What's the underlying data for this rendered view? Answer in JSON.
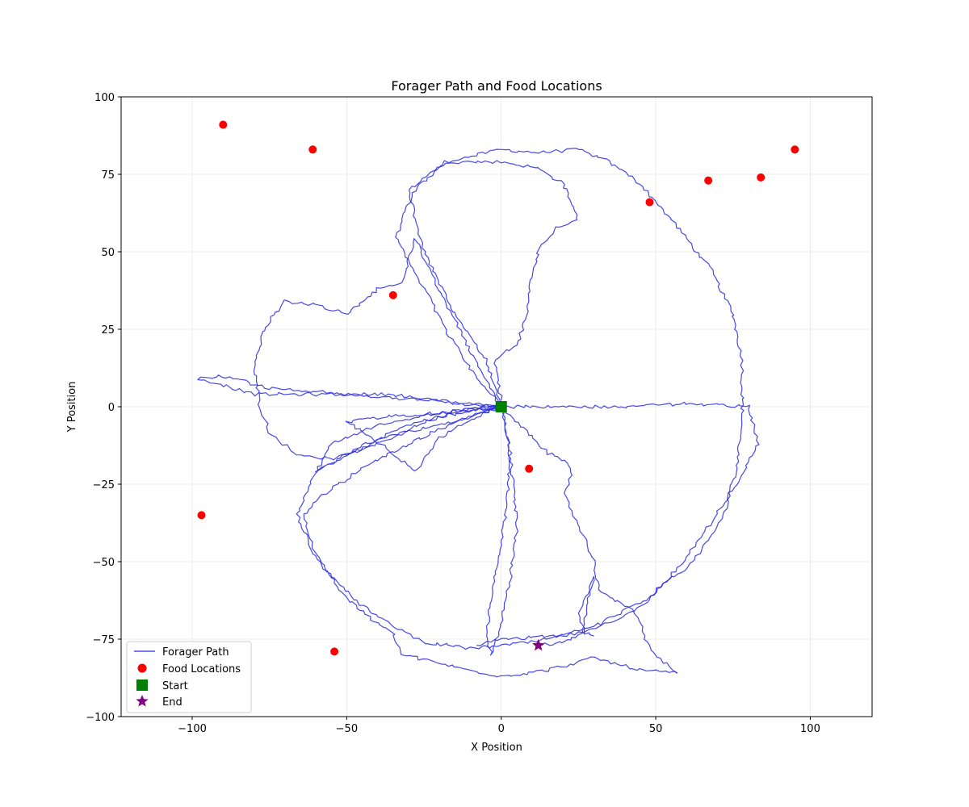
{
  "chart_data": {
    "type": "scatter",
    "title": "Forager Path and Food Locations",
    "xlabel": "X Position",
    "ylabel": "Y Position",
    "xlim": [
      -123,
      120
    ],
    "ylim": [
      -100,
      100
    ],
    "x_ticks": [
      -100,
      -50,
      0,
      50,
      100
    ],
    "y_ticks": [
      -100,
      -75,
      -50,
      -25,
      0,
      25,
      50,
      75,
      100
    ],
    "x_tick_labels": [
      "−100",
      "−50",
      "0",
      "50",
      "100"
    ],
    "y_tick_labels": [
      "−100",
      "−75",
      "−50",
      "−25",
      "0",
      "25",
      "50",
      "75",
      "100"
    ],
    "grid": true,
    "legend_position": "lower-left",
    "colors": {
      "path": "#2727e6",
      "food": "#ff0000",
      "start": "#008000",
      "end": "#800080"
    },
    "series": [
      {
        "name": "Forager Path",
        "type": "line",
        "loops": [
          [
            [
              0,
              0
            ],
            [
              -5,
              15
            ],
            [
              -15,
              30
            ],
            [
              -25,
              50
            ],
            [
              -30,
              70
            ],
            [
              -18,
              79
            ],
            [
              0,
              83
            ],
            [
              12,
              82
            ],
            [
              25,
              83
            ],
            [
              35,
              79
            ],
            [
              45,
              72
            ],
            [
              57,
              58
            ],
            [
              68,
              44
            ],
            [
              75,
              30
            ],
            [
              78,
              15
            ],
            [
              78,
              -5
            ],
            [
              76,
              -20
            ],
            [
              72,
              -35
            ],
            [
              62,
              -50
            ],
            [
              47,
              -62
            ],
            [
              32,
              -70
            ],
            [
              18,
              -74
            ],
            [
              0,
              -75
            ],
            [
              -8,
              -77
            ]
          ],
          [
            [
              0,
              0
            ],
            [
              -10,
              12
            ],
            [
              -18,
              25
            ],
            [
              -26,
              40
            ],
            [
              -34,
              55
            ],
            [
              -28,
              70
            ],
            [
              -18,
              79
            ],
            [
              0,
              79
            ],
            [
              12,
              77
            ],
            [
              20,
              72
            ],
            [
              25,
              60
            ],
            [
              18,
              58
            ],
            [
              12,
              50
            ],
            [
              9,
              40
            ],
            [
              8,
              28
            ],
            [
              5,
              20
            ],
            [
              -2,
              15
            ],
            [
              0,
              2
            ]
          ],
          [
            [
              0,
              0
            ],
            [
              -8,
              14
            ],
            [
              -15,
              28
            ],
            [
              -22,
              42
            ],
            [
              -28,
              54
            ],
            [
              -30,
              48
            ],
            [
              -32,
              40
            ],
            [
              -40,
              38
            ],
            [
              -50,
              30
            ],
            [
              -60,
              33
            ],
            [
              -70,
              34
            ],
            [
              -77,
              25
            ],
            [
              -80,
              12
            ],
            [
              -78,
              0
            ],
            [
              -75,
              -8
            ],
            [
              -67,
              -15
            ],
            [
              -55,
              -17
            ],
            [
              -40,
              -12
            ],
            [
              -25,
              -5
            ],
            [
              -10,
              0
            ],
            [
              0,
              0
            ]
          ],
          [
            [
              0,
              0
            ],
            [
              -20,
              2
            ],
            [
              -40,
              3
            ],
            [
              -60,
              5
            ],
            [
              -75,
              6
            ],
            [
              -90,
              10
            ],
            [
              -98,
              9
            ],
            [
              -90,
              7
            ],
            [
              -80,
              4
            ],
            [
              -55,
              4
            ],
            [
              -35,
              4
            ],
            [
              -15,
              1
            ],
            [
              0,
              0
            ]
          ],
          [
            [
              0,
              0
            ],
            [
              -20,
              -2
            ],
            [
              -40,
              -6
            ],
            [
              -55,
              -12
            ],
            [
              -62,
              -25
            ],
            [
              -66,
              -35
            ],
            [
              -61,
              -47
            ],
            [
              -55,
              -55
            ],
            [
              -50,
              -62
            ],
            [
              -40,
              -70
            ],
            [
              -35,
              -73
            ],
            [
              -32,
              -80
            ],
            [
              -15,
              -84
            ],
            [
              0,
              -87
            ],
            [
              15,
              -85
            ],
            [
              30,
              -81
            ],
            [
              45,
              -85
            ],
            [
              57,
              -86
            ]
          ],
          [
            [
              0,
              0
            ],
            [
              -15,
              -5
            ],
            [
              -30,
              -12
            ],
            [
              -45,
              -20
            ],
            [
              -57,
              -28
            ],
            [
              -64,
              -35
            ],
            [
              -60,
              -48
            ],
            [
              -50,
              -60
            ],
            [
              -40,
              -68
            ],
            [
              -25,
              -76
            ],
            [
              -10,
              -78
            ],
            [
              0,
              -77
            ],
            [
              10,
              -76
            ],
            [
              20,
              -74
            ],
            [
              30,
              -72
            ],
            [
              38,
              -68
            ],
            [
              46,
              -64
            ],
            [
              57,
              -52
            ],
            [
              66,
              -40
            ],
            [
              73,
              -30
            ],
            [
              79,
              -20
            ],
            [
              83,
              -12
            ],
            [
              80,
              0
            ],
            [
              60,
              1
            ],
            [
              40,
              0
            ],
            [
              20,
              0
            ],
            [
              0,
              0
            ]
          ],
          [
            [
              0,
              0
            ],
            [
              -20,
              -3
            ],
            [
              -35,
              -8
            ],
            [
              -50,
              -16
            ],
            [
              -60,
              -21
            ],
            [
              -45,
              -12
            ],
            [
              -30,
              -8
            ],
            [
              -15,
              -5
            ],
            [
              0,
              0
            ]
          ],
          [
            [
              0,
              0
            ],
            [
              -10,
              -4
            ],
            [
              -20,
              -10
            ],
            [
              -28,
              -21
            ],
            [
              -35,
              -15
            ],
            [
              -45,
              -8
            ],
            [
              -50,
              -5
            ],
            [
              -35,
              -3
            ],
            [
              -20,
              -2
            ],
            [
              0,
              0
            ]
          ],
          [
            [
              0,
              0
            ],
            [
              3,
              -15
            ],
            [
              2,
              -30
            ],
            [
              0,
              -45
            ],
            [
              -3,
              -60
            ],
            [
              -5,
              -75
            ],
            [
              -3,
              -80
            ],
            [
              0,
              -70
            ],
            [
              3,
              -55
            ],
            [
              5,
              -40
            ],
            [
              4,
              -25
            ],
            [
              2,
              -10
            ],
            [
              0,
              0
            ]
          ],
          [
            [
              0,
              0
            ],
            [
              8,
              -8
            ],
            [
              15,
              -15
            ],
            [
              22,
              -18
            ],
            [
              23,
              -21
            ],
            [
              20,
              -28
            ],
            [
              25,
              -38
            ],
            [
              30,
              -50
            ],
            [
              32,
              -60
            ],
            [
              38,
              -63
            ],
            [
              42,
              -65
            ],
            [
              45,
              -70
            ],
            [
              48,
              -78
            ],
            [
              54,
              -84
            ],
            [
              57,
              -86
            ]
          ],
          [
            [
              12,
              -77
            ],
            [
              20,
              -76
            ],
            [
              26,
              -73
            ],
            [
              27,
              -68
            ],
            [
              28,
              -62
            ],
            [
              30,
              -55
            ],
            [
              29,
              -58
            ],
            [
              27,
              -63
            ],
            [
              25,
              -68
            ],
            [
              27,
              -73
            ],
            [
              30,
              -74
            ]
          ]
        ]
      },
      {
        "name": "Food Locations",
        "type": "scatter",
        "points": [
          [
            -90,
            91
          ],
          [
            -61,
            83
          ],
          [
            48,
            66
          ],
          [
            67,
            73
          ],
          [
            84,
            74
          ],
          [
            95,
            83
          ],
          [
            -35,
            36
          ],
          [
            9,
            -20
          ],
          [
            -97,
            -35
          ],
          [
            -54,
            -79
          ]
        ]
      },
      {
        "name": "Start",
        "type": "marker",
        "points": [
          [
            0,
            0
          ]
        ]
      },
      {
        "name": "End",
        "type": "marker",
        "points": [
          [
            12,
            -77
          ]
        ]
      }
    ]
  }
}
